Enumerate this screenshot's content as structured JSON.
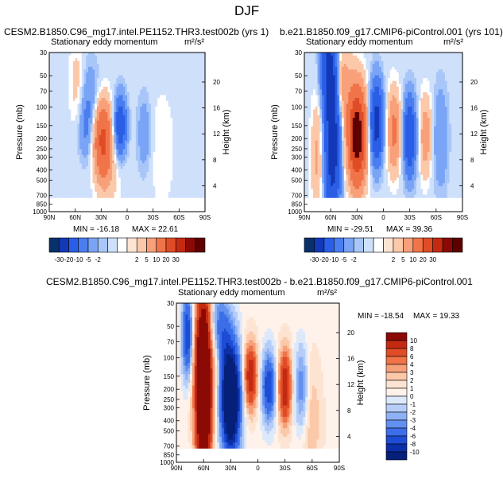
{
  "figure": {
    "title": "DJF"
  },
  "chart_data": [
    {
      "type": "heatmap",
      "title": "CESM2.B1850.C96_mg17.intel.PE1152.THR3.test002b (yrs 1)",
      "subtitle": "Stationary eddy momentum",
      "units": "m²/s²",
      "ylabel": "Pressure (mb)",
      "ylabel_right": "Height (km)",
      "x_ticks": [
        "90N",
        "60N",
        "30N",
        "0",
        "30S",
        "60S",
        "90S"
      ],
      "y_ticks": [
        "30",
        "50",
        "70",
        "100",
        "150",
        "200",
        "250",
        "300",
        "400",
        "500",
        "700",
        "850",
        "1000"
      ],
      "y2_ticks": [
        "20",
        "16",
        "12",
        "8",
        "4"
      ],
      "min_label": "MIN = -16.18",
      "max_label": "MAX =  22.61",
      "min": -16.18,
      "max": 22.61,
      "blobs": [
        {
          "lat": 28,
          "p": 205,
          "amp": 22.6,
          "slat": 7,
          "sp": 0.55
        },
        {
          "lat": 8,
          "p": 150,
          "amp": -16.2,
          "slat": 5,
          "sp": 0.45
        },
        {
          "lat": 42,
          "p": 80,
          "amp": -4,
          "slat": 7,
          "sp": 0.6
        },
        {
          "lat": 48,
          "p": 160,
          "amp": -5,
          "slat": 6,
          "sp": 0.5
        },
        {
          "lat": 58,
          "p": 60,
          "amp": 3,
          "slat": 6,
          "sp": 0.7
        },
        {
          "lat": -20,
          "p": 180,
          "amp": -4,
          "slat": 6,
          "sp": 0.6
        },
        {
          "lat": -40,
          "p": 250,
          "amp": 2,
          "slat": 10,
          "sp": 0.9
        },
        {
          "lat": 22,
          "p": 450,
          "amp": 3,
          "slat": 10,
          "sp": 0.5
        }
      ]
    },
    {
      "type": "heatmap",
      "title": "b.e21.B1850.f09_g17.CMIP6-piControl.001 (yrs 101)",
      "subtitle": "Stationary eddy momentum",
      "units": "m²/s²",
      "ylabel": "Pressure (mb)",
      "ylabel_right": "Height (km)",
      "x_ticks": [
        "90N",
        "60N",
        "30N",
        "0",
        "30S",
        "60S",
        "90S"
      ],
      "y_ticks": [
        "30",
        "50",
        "70",
        "100",
        "150",
        "200",
        "250",
        "300",
        "400",
        "500",
        "700",
        "850",
        "1000"
      ],
      "y2_ticks": [
        "20",
        "16",
        "12",
        "8",
        "4"
      ],
      "min_label": "MIN = -29.51",
      "max_label": "MAX =  39.36",
      "min": -29.51,
      "max": 39.36,
      "blobs": [
        {
          "lat": 58,
          "p": 200,
          "amp": -29.5,
          "slat": 6,
          "sp": 1.2
        },
        {
          "lat": 62,
          "p": 45,
          "amp": -20,
          "slat": 6,
          "sp": 0.6
        },
        {
          "lat": 30,
          "p": 190,
          "amp": 39.4,
          "slat": 7,
          "sp": 0.7
        },
        {
          "lat": 50,
          "p": 60,
          "amp": 10,
          "slat": 8,
          "sp": 0.6
        },
        {
          "lat": 8,
          "p": 140,
          "amp": -25,
          "slat": 5,
          "sp": 0.6
        },
        {
          "lat": -12,
          "p": 170,
          "amp": 12,
          "slat": 5,
          "sp": 0.6
        },
        {
          "lat": -30,
          "p": 190,
          "amp": -18,
          "slat": 5,
          "sp": 0.6
        },
        {
          "lat": -48,
          "p": 190,
          "amp": 8,
          "slat": 5,
          "sp": 0.6
        },
        {
          "lat": 75,
          "p": 300,
          "amp": 6,
          "slat": 5,
          "sp": 0.9
        },
        {
          "lat": -65,
          "p": 200,
          "amp": -5,
          "slat": 6,
          "sp": 0.8
        }
      ]
    },
    {
      "type": "heatmap",
      "title": "CESM2.B1850.C96_mg17.intel.PE1152.THR3.test002b - b.e21.B1850.f09_g17.CMIP6-piControl.001",
      "subtitle": "Stationary eddy momentum",
      "units": "m²/s²",
      "ylabel": "Pressure (mb)",
      "ylabel_right": "Height (km)",
      "x_ticks": [
        "90N",
        "60N",
        "30N",
        "0",
        "30S",
        "60S",
        "90S"
      ],
      "y_ticks": [
        "30",
        "50",
        "70",
        "100",
        "150",
        "200",
        "250",
        "300",
        "400",
        "500",
        "700",
        "850",
        "1000"
      ],
      "y2_ticks": [
        "20",
        "16",
        "12",
        "8",
        "4"
      ],
      "min_label": "MIN = -18.54",
      "max_label": "MAX =  19.33",
      "min": -18.54,
      "max": 19.33,
      "blobs": [
        {
          "lat": 60,
          "p": 180,
          "amp": 19.3,
          "slat": 6,
          "sp": 1.3
        },
        {
          "lat": 30,
          "p": 250,
          "amp": -18.5,
          "slat": 7,
          "sp": 0.8
        },
        {
          "lat": 8,
          "p": 150,
          "amp": 8,
          "slat": 5,
          "sp": 0.5
        },
        {
          "lat": -12,
          "p": 190,
          "amp": -8,
          "slat": 5,
          "sp": 0.5
        },
        {
          "lat": -30,
          "p": 190,
          "amp": 8,
          "slat": 5,
          "sp": 0.55
        },
        {
          "lat": -48,
          "p": 190,
          "amp": -4,
          "slat": 5,
          "sp": 0.6
        },
        {
          "lat": 78,
          "p": 60,
          "amp": -8,
          "slat": 4,
          "sp": 0.6
        },
        {
          "lat": 42,
          "p": 60,
          "amp": -6,
          "slat": 8,
          "sp": 0.6
        },
        {
          "lat": -60,
          "p": 400,
          "amp": 1.5,
          "slat": 8,
          "sp": 1.0
        },
        {
          "lat": 45,
          "p": 90,
          "amp": 3,
          "slat": 5,
          "sp": 0.5
        }
      ]
    }
  ],
  "colorbar_top": {
    "labels": [
      "-30",
      "-20",
      "-10",
      "-5",
      "-2",
      "2",
      "5",
      "10",
      "20",
      "30"
    ],
    "colors": [
      "#08306b",
      "#1338b8",
      "#2a5ee6",
      "#4a7ef0",
      "#7aa4f5",
      "#a8c6f8",
      "#cfe0fb",
      "#ffffff",
      "#fde4d2",
      "#fbc9aa",
      "#f7a07a",
      "#f07448",
      "#e04c26",
      "#c42a12",
      "#8b0a05",
      "#5f0000"
    ]
  },
  "colorbar_diff": {
    "labels": [
      "10",
      "8",
      "6",
      "4",
      "3",
      "2",
      "1",
      "0",
      "-1",
      "-2",
      "-3",
      "-4",
      "-6",
      "-8",
      "-10"
    ],
    "colors": [
      "#8b0a05",
      "#c42a12",
      "#e04c26",
      "#f07448",
      "#f7a07a",
      "#fbc9aa",
      "#fde4d2",
      "#fef2ea",
      "#dce9fb",
      "#b5cdf8",
      "#8db1f4",
      "#6290ef",
      "#3b6ee8",
      "#1d4dd6",
      "#0b2fa8",
      "#06207a"
    ]
  }
}
